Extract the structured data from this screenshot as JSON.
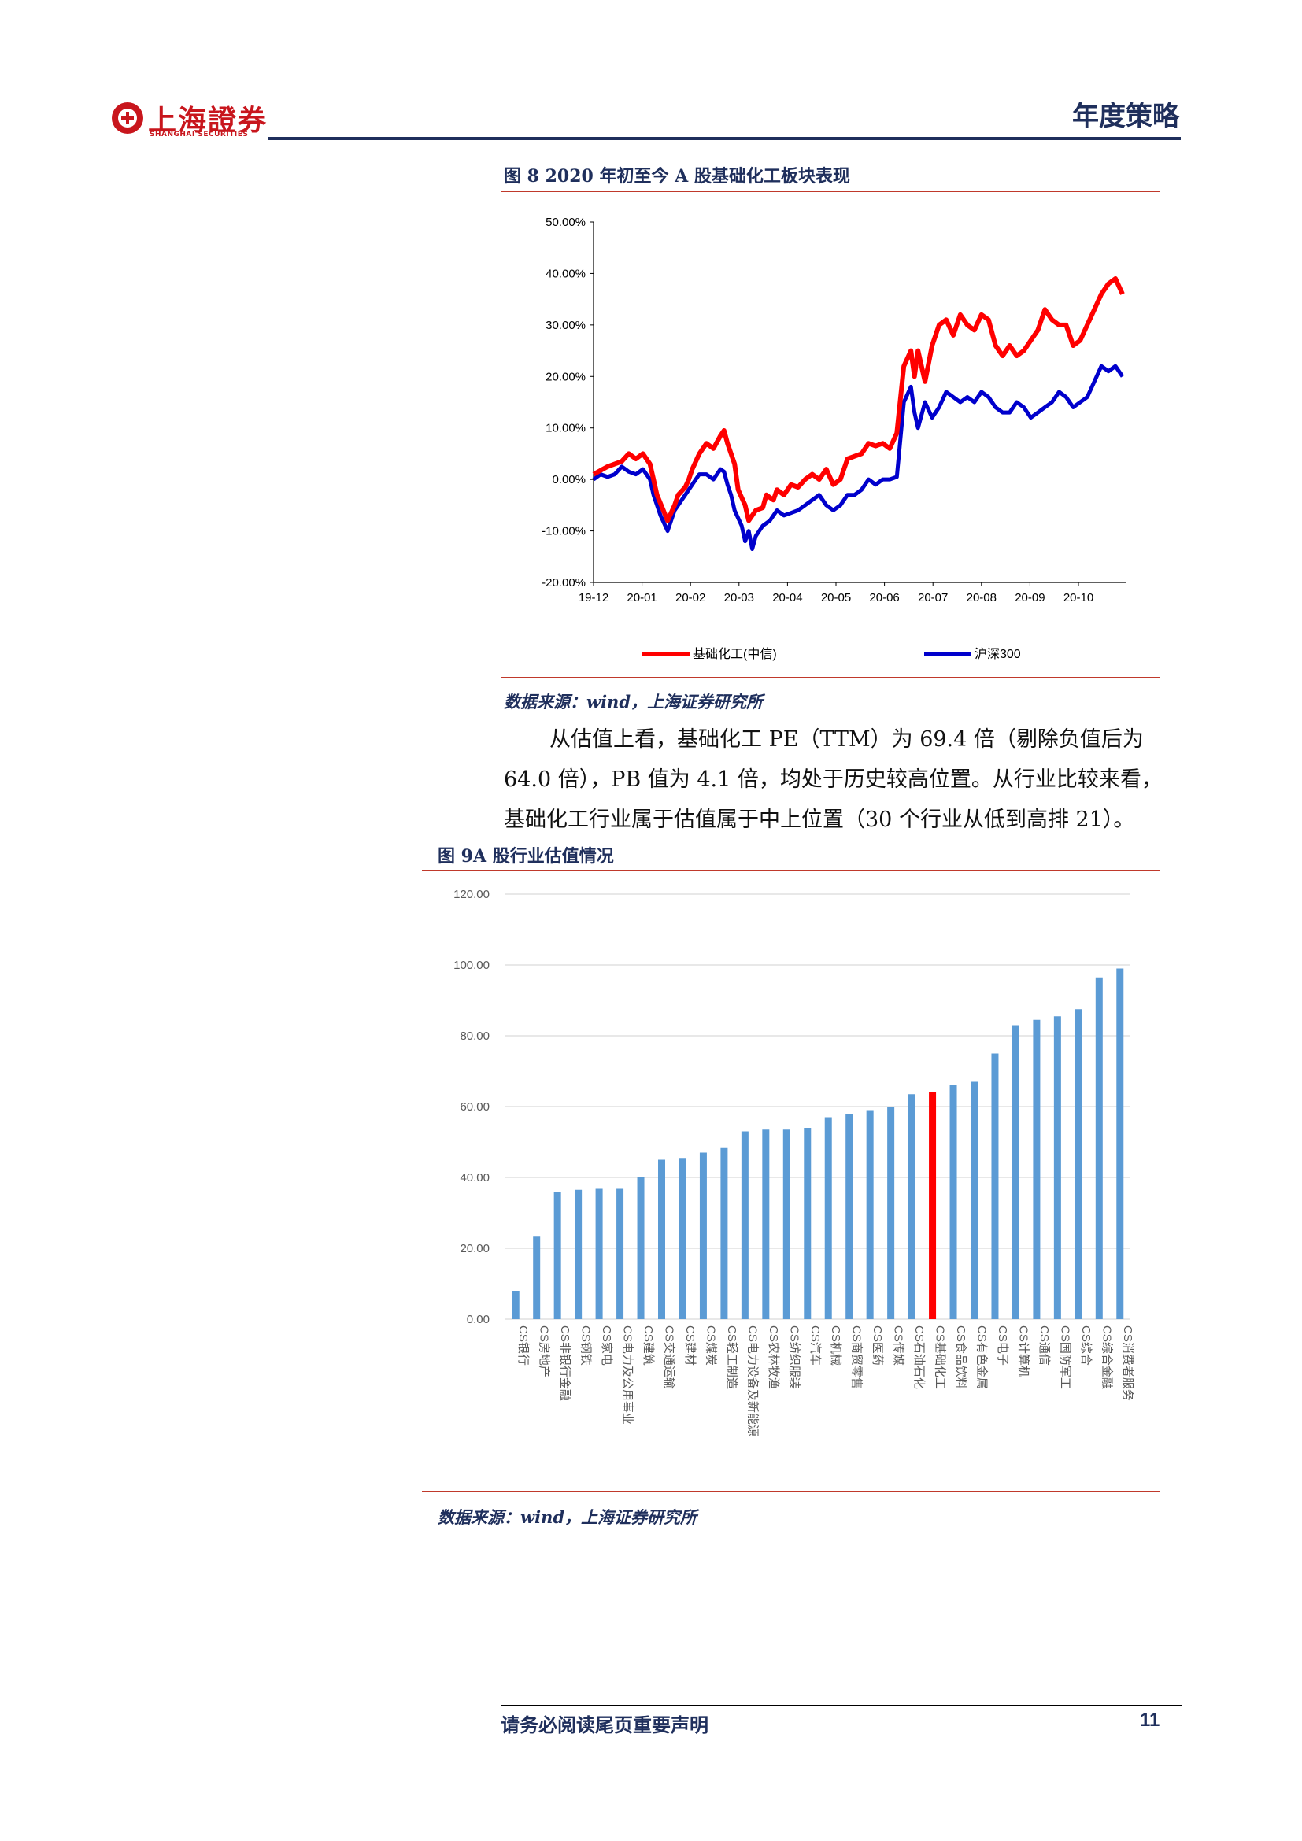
{
  "header": {
    "logo_text": "上海證券",
    "logo_sub": "SHANGHAI SECURITIES",
    "title": "年度策略"
  },
  "figure8": {
    "title": "图 8 2020 年初至今 A 股基础化工板块表现",
    "source": "数据来源：wind，上海证券研究所"
  },
  "paragraph": {
    "line1": "从估值上看，基础化工 PE（TTM）为 69.4 倍（剔除负值后为",
    "line2": "64.0 倍），PB 值为 4.1 倍，均处于历史较高位置。从行业比较来看，",
    "line3": "基础化工行业属于估值属于中上位置（30 个行业从低到高排 21）。"
  },
  "figure9": {
    "title": "图 9A 股行业估值情况",
    "source": "数据来源：wind，上海证券研究所"
  },
  "footer": {
    "disclaimer": "请务必阅读尾页重要声明",
    "page": "11"
  },
  "colors": {
    "navy": "#1f2f5c",
    "red_series": "#ff0000",
    "blue_series": "#0000cc",
    "bar": "#5b9bd5",
    "bar_highlight": "#ff0000"
  },
  "chart_data": [
    {
      "type": "line",
      "xlabel": "",
      "ylabel": "",
      "ylim": [
        -20,
        50
      ],
      "yticks": [
        "50.00%",
        "40.00%",
        "30.00%",
        "20.00%",
        "10.00%",
        "0.00%",
        "-10.00%",
        "-20.00%"
      ],
      "xticks": [
        "19-12",
        "20-01",
        "20-02",
        "20-03",
        "20-04",
        "20-05",
        "20-06",
        "20-07",
        "20-08",
        "20-09",
        "20-10"
      ],
      "legend_position": "bottom",
      "series": [
        {
          "name": "基础化工(中信)",
          "color": "#ff0000",
          "points": [
            [
              0,
              1
            ],
            [
              2,
              2.5
            ],
            [
              4,
              3.5
            ],
            [
              5,
              5
            ],
            [
              6,
              4
            ],
            [
              7,
              5
            ],
            [
              8,
              3
            ],
            [
              8.5,
              0
            ],
            [
              9,
              -3
            ],
            [
              10.5,
              -8
            ],
            [
              11.5,
              -5
            ],
            [
              12,
              -3
            ],
            [
              13,
              -1.5
            ],
            [
              13.5,
              0
            ],
            [
              14,
              2
            ],
            [
              15,
              5
            ],
            [
              16,
              7
            ],
            [
              17,
              6
            ],
            [
              18,
              8.5
            ],
            [
              18.5,
              9.5
            ],
            [
              19,
              7
            ],
            [
              19.5,
              5
            ],
            [
              20,
              3
            ],
            [
              20.5,
              -2
            ],
            [
              21.5,
              -5
            ],
            [
              22,
              -8
            ],
            [
              23,
              -6
            ],
            [
              24,
              -5.5
            ],
            [
              24.5,
              -3
            ],
            [
              25.5,
              -4
            ],
            [
              26,
              -2
            ],
            [
              27,
              -3
            ],
            [
              28,
              -1
            ],
            [
              29,
              -1.5
            ],
            [
              30,
              0
            ],
            [
              31,
              1
            ],
            [
              32,
              0
            ],
            [
              33,
              2
            ],
            [
              34,
              -1
            ],
            [
              35,
              0
            ],
            [
              36,
              4
            ],
            [
              37,
              4.5
            ],
            [
              38,
              5
            ],
            [
              39,
              7
            ],
            [
              40,
              6.5
            ],
            [
              41,
              7
            ],
            [
              42,
              6
            ],
            [
              43,
              9
            ],
            [
              44,
              22
            ],
            [
              45,
              25
            ],
            [
              45.5,
              20
            ],
            [
              46,
              25
            ],
            [
              47,
              19
            ],
            [
              48,
              26
            ],
            [
              49,
              30
            ],
            [
              50,
              31
            ],
            [
              51,
              28
            ],
            [
              52,
              32
            ],
            [
              53,
              30
            ],
            [
              54,
              29
            ],
            [
              55,
              32
            ],
            [
              56,
              31
            ],
            [
              57,
              26
            ],
            [
              58,
              24
            ],
            [
              59,
              26
            ],
            [
              60,
              24
            ],
            [
              61,
              25
            ],
            [
              62,
              27
            ],
            [
              63,
              29
            ],
            [
              64,
              33
            ],
            [
              65,
              31
            ],
            [
              66,
              30
            ],
            [
              67,
              30
            ],
            [
              68,
              26
            ],
            [
              69,
              27
            ],
            [
              70,
              30
            ],
            [
              71,
              33
            ],
            [
              72,
              36
            ],
            [
              73,
              38
            ],
            [
              74,
              39
            ],
            [
              75,
              36
            ]
          ]
        },
        {
          "name": "沪深300",
          "color": "#0000cc",
          "points": [
            [
              0,
              0
            ],
            [
              1,
              1
            ],
            [
              2,
              0.5
            ],
            [
              3,
              1
            ],
            [
              4,
              2.5
            ],
            [
              5,
              1.5
            ],
            [
              6,
              1
            ],
            [
              7,
              2
            ],
            [
              8,
              0
            ],
            [
              8.5,
              -3
            ],
            [
              9.5,
              -7
            ],
            [
              10.5,
              -10
            ],
            [
              11.5,
              -6
            ],
            [
              12,
              -5
            ],
            [
              13,
              -3
            ],
            [
              14,
              -1
            ],
            [
              15,
              1
            ],
            [
              16,
              1
            ],
            [
              17,
              0
            ],
            [
              18,
              2
            ],
            [
              18.5,
              1.5
            ],
            [
              19,
              -1
            ],
            [
              19.5,
              -3
            ],
            [
              20,
              -6
            ],
            [
              21,
              -9
            ],
            [
              21.5,
              -12
            ],
            [
              22,
              -10
            ],
            [
              22.5,
              -13.5
            ],
            [
              23,
              -11
            ],
            [
              24,
              -9
            ],
            [
              25,
              -8
            ],
            [
              26,
              -6
            ],
            [
              27,
              -7
            ],
            [
              28,
              -6.5
            ],
            [
              29,
              -6
            ],
            [
              30,
              -5
            ],
            [
              31,
              -4
            ],
            [
              32,
              -3
            ],
            [
              33,
              -5
            ],
            [
              34,
              -6
            ],
            [
              35,
              -5
            ],
            [
              36,
              -3
            ],
            [
              37,
              -3
            ],
            [
              38,
              -2
            ],
            [
              39,
              0
            ],
            [
              40,
              -1
            ],
            [
              41,
              0
            ],
            [
              42,
              0
            ],
            [
              43,
              0.5
            ],
            [
              44,
              15
            ],
            [
              45,
              18
            ],
            [
              45.5,
              13
            ],
            [
              46,
              10
            ],
            [
              47,
              15
            ],
            [
              48,
              12
            ],
            [
              49,
              14
            ],
            [
              50,
              17
            ],
            [
              51,
              16
            ],
            [
              52,
              15
            ],
            [
              53,
              16
            ],
            [
              54,
              15
            ],
            [
              55,
              17
            ],
            [
              56,
              16
            ],
            [
              57,
              14
            ],
            [
              58,
              13
            ],
            [
              59,
              13
            ],
            [
              60,
              15
            ],
            [
              61,
              14
            ],
            [
              62,
              12
            ],
            [
              63,
              13
            ],
            [
              64,
              14
            ],
            [
              65,
              15
            ],
            [
              66,
              17
            ],
            [
              67,
              16
            ],
            [
              68,
              14
            ],
            [
              69,
              15
            ],
            [
              70,
              16
            ],
            [
              71,
              19
            ],
            [
              72,
              22
            ],
            [
              73,
              21
            ],
            [
              74,
              22
            ],
            [
              75,
              20
            ]
          ]
        }
      ]
    },
    {
      "type": "bar",
      "ylim": [
        0,
        120
      ],
      "yticks": [
        "120.00",
        "100.00",
        "80.00",
        "60.00",
        "40.00",
        "20.00",
        "0.00"
      ],
      "categories": [
        "CS银行",
        "CS房地产",
        "CS非银行金融",
        "CS钢铁",
        "CS家电",
        "CS电力及公用事业",
        "CS建筑",
        "CS交通运输",
        "CS建材",
        "CS煤炭",
        "CS轻工制造",
        "CS电力设备及新能源",
        "CS农林牧渔",
        "CS纺织服装",
        "CS汽车",
        "CS机械",
        "CS商贸零售",
        "CS医药",
        "CS传媒",
        "CS石油石化",
        "CS基础化工",
        "CS食品饮料",
        "CS有色金属",
        "CS电子",
        "CS计算机",
        "CS通信",
        "CS国防军工",
        "CS综合",
        "CS综合金融",
        "CS消费者服务"
      ],
      "values": [
        8,
        23.5,
        36,
        36.5,
        37,
        37,
        40,
        45,
        45.5,
        47,
        48.5,
        53,
        53.5,
        53.5,
        54,
        57,
        58,
        59,
        60,
        63.5,
        64,
        66,
        67,
        75,
        83,
        84.5,
        85.5,
        87.5,
        96.5,
        99
      ],
      "highlight_index": 20
    }
  ]
}
